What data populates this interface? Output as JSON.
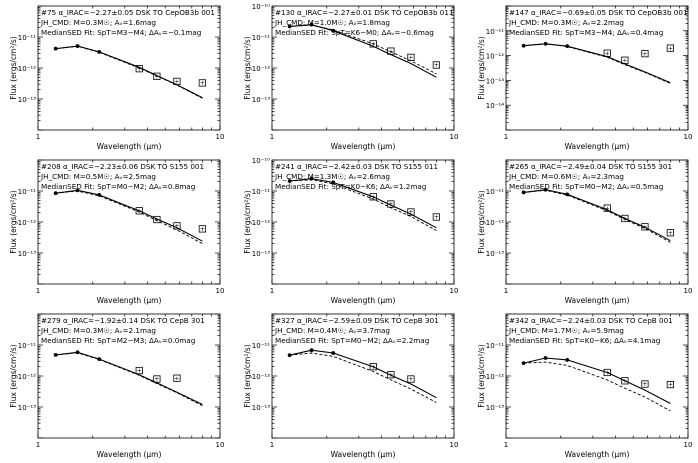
{
  "figure": {
    "xlabel": "Wavelength (μm)",
    "ylabel": "Flux (ergs/cm²/s)"
  },
  "chart_data": [
    {
      "type": "line",
      "title": "#75 α_IRAC=−2.27±0.05 DSK TO CepOB3b 001",
      "annotation_1": "JH_CMD: M=0.3M☉; Aᵥ=1.6mag",
      "annotation_2": "MedianSED Fit: SpT=M3−M4; ΔAᵥ=−0.1mag",
      "xlabel": "Wavelength (μm)",
      "ylabel": "Flux (ergs/cm²/s)",
      "xlim": [
        1,
        10
      ],
      "ylim": [
        1e-14,
        1e-10
      ],
      "xscale": "log",
      "yscale": "log",
      "x_ticks": [
        "1",
        "10"
      ],
      "y_ticks": [
        "10⁻¹¹",
        "10⁻¹²",
        "10⁻¹³"
      ],
      "series": [
        {
          "name": "Photosphere model (solid)",
          "x": [
            1.25,
            1.65,
            2.17,
            3.6,
            4.5,
            5.8,
            8.0
          ],
          "values": [
            4.2e-12,
            5.1e-12,
            3.3e-12,
            1.05e-12,
            5.7e-13,
            2.9e-13,
            1.1e-13
          ]
        },
        {
          "name": "Median SED (dashed)",
          "x": [
            1.25,
            1.65,
            2.17,
            3.6,
            4.5,
            5.8,
            8.0
          ],
          "values": [
            4.2e-12,
            5e-12,
            3.2e-12,
            1e-12,
            5.5e-13,
            2.8e-13,
            1.05e-13
          ]
        },
        {
          "name": "Observed (filled dots)",
          "x": [
            1.25,
            1.65,
            2.17
          ],
          "values": [
            4.2e-12,
            5.1e-12,
            3.3e-12
          ]
        },
        {
          "name": "IRAC (boxed points)",
          "x": [
            3.6,
            4.5,
            5.8,
            8.0
          ],
          "values": [
            9.5e-13,
            5.4e-13,
            3.7e-13,
            3.3e-13
          ]
        }
      ]
    },
    {
      "type": "line",
      "title": "#130 α_IRAC=−2.27±0.01 DSK TO CepOB3b 011",
      "annotation_1": "JH_CMD: M=1.0M☉; Aᵥ=1.8mag",
      "annotation_2": "MedianSED Fit: SpT=K6−M0; ΔAᵥ=−0.6mag",
      "xlabel": "Wavelength (μm)",
      "ylabel": "Flux (ergs/cm²/s)",
      "xlim": [
        1,
        10
      ],
      "ylim": [
        1e-14,
        1e-10
      ],
      "xscale": "log",
      "yscale": "log",
      "x_ticks": [
        "1",
        "10"
      ],
      "y_ticks": [
        "10⁻¹⁰",
        "10⁻¹¹",
        "10⁻¹²",
        "10⁻¹³"
      ],
      "series": [
        {
          "name": "Photosphere model (solid)",
          "x": [
            1.25,
            1.65,
            2.17,
            3.6,
            4.5,
            5.8,
            8.0
          ],
          "values": [
            2.2e-11,
            2.5e-11,
            1.6e-11,
            5e-12,
            2.7e-12,
            1.4e-12,
            5e-13
          ]
        },
        {
          "name": "Median SED (dashed)",
          "x": [
            1.25,
            1.65,
            2.17,
            3.6,
            4.5,
            5.8,
            8.0
          ],
          "values": [
            2.2e-11,
            2.4e-11,
            1.7e-11,
            6e-12,
            3.3e-12,
            1.7e-12,
            6.5e-13
          ]
        },
        {
          "name": "Observed (filled dots)",
          "x": [
            1.25,
            1.65,
            2.17
          ],
          "values": [
            2.2e-11,
            2.5e-11,
            1.6e-11
          ]
        },
        {
          "name": "IRAC (boxed points)",
          "x": [
            3.6,
            4.5,
            5.8,
            8.0
          ],
          "values": [
            6e-12,
            3.5e-12,
            2.2e-12,
            1.25e-12
          ]
        }
      ]
    },
    {
      "type": "line",
      "title": "#147 α_IRAC=−0.69±0.05 DSK TO CepOB3b 001",
      "annotation_1": "JH_CMD: M=0.3M☉; Aᵥ=2.2mag",
      "annotation_2": "MedianSED Fit: SpT=M3−M4; ΔAᵥ=0.4mag",
      "xlabel": "Wavelength (μm)",
      "ylabel": "Flux (ergs/cm²/s)",
      "xlim": [
        1,
        10
      ],
      "ylim": [
        1e-15,
        1e-10
      ],
      "xscale": "log",
      "yscale": "log",
      "x_ticks": [
        "1",
        "10"
      ],
      "y_ticks": [
        "10⁻¹¹",
        "10⁻¹²",
        "10⁻¹³",
        "10⁻¹⁴"
      ],
      "series": [
        {
          "name": "Photosphere model (solid)",
          "x": [
            1.25,
            1.65,
            2.17,
            3.6,
            4.5,
            5.8,
            8.0
          ],
          "values": [
            2.5e-12,
            3e-12,
            2.4e-12,
            9e-13,
            4.6e-13,
            2.2e-13,
            8e-14
          ]
        },
        {
          "name": "Median SED (dashed)",
          "x": [
            1.25,
            1.65,
            2.17,
            3.6,
            4.5,
            5.8,
            8.0
          ],
          "values": [
            2.5e-12,
            3e-12,
            2.3e-12,
            8.6e-13,
            4.3e-13,
            2.1e-13,
            7.6e-14
          ]
        },
        {
          "name": "Observed (filled dots)",
          "x": [
            1.25,
            1.65,
            2.17
          ],
          "values": [
            2.5e-12,
            3e-12,
            2.4e-12
          ]
        },
        {
          "name": "IRAC (boxed points)",
          "x": [
            3.6,
            4.5,
            5.8,
            8.0
          ],
          "values": [
            1.25e-12,
            6.5e-13,
            1.2e-12,
            2e-12
          ]
        }
      ]
    },
    {
      "type": "line",
      "title": "#208 α_IRAC=−2.23±0.06 DSK TO S155 001",
      "annotation_1": "JH_CMD: M=0.5M☉; Aᵥ=2.5mag",
      "annotation_2": "MedianSED Fit: SpT=M0−M2; ΔAᵥ=0.8mag",
      "xlabel": "Wavelength (μm)",
      "ylabel": "Flux (ergs/cm²/s)",
      "xlim": [
        1,
        10
      ],
      "ylim": [
        1e-14,
        1e-10
      ],
      "xscale": "log",
      "yscale": "log",
      "x_ticks": [
        "1",
        "10"
      ],
      "y_ticks": [
        "10⁻¹¹",
        "10⁻¹²",
        "10⁻¹³"
      ],
      "series": [
        {
          "name": "Photosphere model (solid)",
          "x": [
            1.25,
            1.65,
            2.17,
            3.6,
            4.5,
            5.8,
            8.0
          ],
          "values": [
            8.5e-12,
            1.05e-11,
            7.5e-12,
            2.3e-12,
            1.25e-12,
            6.5e-13,
            2.4e-13
          ]
        },
        {
          "name": "Median SED (dashed)",
          "x": [
            1.25,
            1.65,
            2.17,
            3.6,
            4.5,
            5.8,
            8.0
          ],
          "values": [
            8.5e-12,
            1e-11,
            7e-12,
            2.1e-12,
            1.1e-12,
            5.6e-13,
            2e-13
          ]
        },
        {
          "name": "Observed (filled dots)",
          "x": [
            1.25,
            1.65,
            2.17
          ],
          "values": [
            8.5e-12,
            1.05e-11,
            7.5e-12
          ]
        },
        {
          "name": "IRAC (boxed points)",
          "x": [
            3.6,
            4.5,
            5.8,
            8.0
          ],
          "values": [
            2.3e-12,
            1.2e-12,
            7.5e-13,
            6e-13
          ]
        }
      ]
    },
    {
      "type": "line",
      "title": "#241 α_IRAC=−2.42±0.03 DSK TO S155 011",
      "annotation_1": "JH_CMD: M=1.3M☉; Aᵥ=2.6mag",
      "annotation_2": "MedianSED Fit: SpT=K0−K6; ΔAᵥ=1.2mag",
      "xlabel": "Wavelength (μm)",
      "ylabel": "Flux (ergs/cm²/s)",
      "xlim": [
        1,
        10
      ],
      "ylim": [
        1e-14,
        1e-10
      ],
      "xscale": "log",
      "yscale": "log",
      "x_ticks": [
        "1",
        "10"
      ],
      "y_ticks": [
        "10⁻¹⁰",
        "10⁻¹¹",
        "10⁻¹²",
        "10⁻¹³"
      ],
      "series": [
        {
          "name": "Photosphere model (solid)",
          "x": [
            1.25,
            1.65,
            2.17,
            3.6,
            4.5,
            5.8,
            8.0
          ],
          "values": [
            2.1e-11,
            2.5e-11,
            1.9e-11,
            6.5e-12,
            3.5e-12,
            1.8e-12,
            6.5e-13
          ]
        },
        {
          "name": "Median SED (dashed)",
          "x": [
            1.25,
            1.65,
            2.17,
            3.6,
            4.5,
            5.8,
            8.0
          ],
          "values": [
            2.1e-11,
            2.3e-11,
            1.7e-11,
            5.5e-12,
            2.9e-12,
            1.5e-12,
            5.3e-13
          ]
        },
        {
          "name": "Observed (filled dots)",
          "x": [
            1.25,
            1.65,
            2.17
          ],
          "values": [
            2.1e-11,
            2.5e-11,
            1.9e-11
          ]
        },
        {
          "name": "IRAC (boxed points)",
          "x": [
            3.6,
            4.5,
            5.8,
            8.0
          ],
          "values": [
            6.5e-12,
            3.8e-12,
            2.1e-12,
            1.45e-12
          ]
        }
      ]
    },
    {
      "type": "line",
      "title": "#265 α_IRAC=−2.49±0.04 DSK TO S155 301",
      "annotation_1": "JH_CMD: M=0.6M☉; Aᵥ=2.3mag",
      "annotation_2": "MedianSED Fit: SpT=M0−M2; ΔAᵥ=0.5mag",
      "xlabel": "Wavelength (μm)",
      "ylabel": "Flux (ergs/cm²/s)",
      "xlim": [
        1,
        10
      ],
      "ylim": [
        1e-14,
        1e-10
      ],
      "xscale": "log",
      "yscale": "log",
      "x_ticks": [
        "1",
        "10"
      ],
      "y_ticks": [
        "10⁻¹¹",
        "10⁻¹²",
        "10⁻¹³"
      ],
      "series": [
        {
          "name": "Photosphere model (solid)",
          "x": [
            1.25,
            1.65,
            2.17,
            3.6,
            4.5,
            5.8,
            8.0
          ],
          "values": [
            9e-12,
            1.1e-11,
            7.8e-12,
            2.5e-12,
            1.3e-12,
            6.8e-13,
            2.5e-13
          ]
        },
        {
          "name": "Median SED (dashed)",
          "x": [
            1.25,
            1.65,
            2.17,
            3.6,
            4.5,
            5.8,
            8.0
          ],
          "values": [
            9e-12,
            1.05e-11,
            7.4e-12,
            2.3e-12,
            1.2e-12,
            6.2e-13,
            2.2e-13
          ]
        },
        {
          "name": "Observed (filled dots)",
          "x": [
            1.25,
            1.65,
            2.17
          ],
          "values": [
            9e-12,
            1.1e-11,
            7.8e-12
          ]
        },
        {
          "name": "IRAC (boxed points)",
          "x": [
            3.6,
            4.5,
            5.8,
            8.0
          ],
          "values": [
            2.8e-12,
            1.3e-12,
            7e-13,
            4.5e-13
          ]
        }
      ]
    },
    {
      "type": "line",
      "title": "#279 α_IRAC=−1.92±0.14 DSK TO CepB 301",
      "annotation_1": "JH_CMD: M=0.3M☉; Aᵥ=2.1mag",
      "annotation_2": "MedianSED Fit: SpT=M2−M3; ΔAᵥ=0.0mag",
      "xlabel": "Wavelength (μm)",
      "ylabel": "Flux (ergs/cm²/s)",
      "xlim": [
        1,
        10
      ],
      "ylim": [
        1e-14,
        1e-10
      ],
      "xscale": "log",
      "yscale": "log",
      "x_ticks": [
        "1",
        "10"
      ],
      "y_ticks": [
        "10⁻¹¹",
        "10⁻¹²",
        "10⁻¹³"
      ],
      "series": [
        {
          "name": "Photosphere model (solid)",
          "x": [
            1.25,
            1.65,
            2.17,
            3.6,
            4.5,
            5.8,
            8.0
          ],
          "values": [
            4.8e-12,
            5.8e-12,
            3.5e-12,
            1.1e-12,
            6e-13,
            3e-13,
            1.2e-13
          ]
        },
        {
          "name": "Median SED (dashed)",
          "x": [
            1.25,
            1.65,
            2.17,
            3.6,
            4.5,
            5.8,
            8.0
          ],
          "values": [
            4.8e-12,
            5.6e-12,
            3.4e-12,
            1.05e-12,
            5.7e-13,
            2.9e-13,
            1.1e-13
          ]
        },
        {
          "name": "Observed (filled dots)",
          "x": [
            1.25,
            1.65,
            2.17
          ],
          "values": [
            4.8e-12,
            5.8e-12,
            3.5e-12
          ]
        },
        {
          "name": "IRAC (boxed points)",
          "x": [
            3.6,
            4.5,
            5.8
          ],
          "values": [
            1.5e-12,
            8e-13,
            8.5e-13
          ]
        }
      ]
    },
    {
      "type": "line",
      "title": "#327 α_IRAC=−2.59±0.09 DSK TO CepB 301",
      "annotation_1": "JH_CMD: M=0.4M☉; Aᵥ=3.7mag",
      "annotation_2": "MedianSED Fit: SpT=M0−M2; ΔAᵥ=2.2mag",
      "xlabel": "Wavelength (μm)",
      "ylabel": "Flux (ergs/cm²/s)",
      "xlim": [
        1,
        10
      ],
      "ylim": [
        1e-14,
        1e-10
      ],
      "xscale": "log",
      "yscale": "log",
      "x_ticks": [
        "1",
        "10"
      ],
      "y_ticks": [
        "10⁻¹¹",
        "10⁻¹²",
        "10⁻¹³"
      ],
      "series": [
        {
          "name": "Photosphere model (solid)",
          "x": [
            1.25,
            1.65,
            2.17,
            3.6,
            4.5,
            5.8,
            8.0
          ],
          "values": [
            4.7e-12,
            6.8e-12,
            5.5e-12,
            2e-12,
            1.05e-12,
            5.5e-13,
            2e-13
          ]
        },
        {
          "name": "Median SED (dashed)",
          "x": [
            1.25,
            1.65,
            2.17,
            3.6,
            4.5,
            5.8,
            8.0
          ],
          "values": [
            4.7e-12,
            5.5e-12,
            4.3e-12,
            1.4e-12,
            7.5e-13,
            3.8e-13,
            1.4e-13
          ]
        },
        {
          "name": "Observed (filled dots)",
          "x": [
            1.25,
            1.65,
            2.17
          ],
          "values": [
            4.7e-12,
            6.8e-12,
            5.5e-12
          ]
        },
        {
          "name": "IRAC (boxed points)",
          "x": [
            3.6,
            4.5,
            5.8
          ],
          "values": [
            2e-12,
            1.1e-12,
            8e-13
          ]
        }
      ]
    },
    {
      "type": "line",
      "title": "#342 α_IRAC=−2.24±0.03 DSK TO CepB 001",
      "annotation_1": "JH_CMD: M=1.7M☉; Aᵥ=5.9mag",
      "annotation_2": "MedianSED Fit: SpT=K0−K6; ΔAᵥ=4.1mag",
      "xlabel": "Wavelength (μm)",
      "ylabel": "Flux (ergs/cm²/s)",
      "xlim": [
        1,
        10
      ],
      "ylim": [
        1e-14,
        1e-10
      ],
      "xscale": "log",
      "yscale": "log",
      "x_ticks": [
        "1",
        "10"
      ],
      "y_ticks": [
        "10⁻¹¹",
        "10⁻¹²",
        "10⁻¹³"
      ],
      "series": [
        {
          "name": "Photosphere model (solid)",
          "x": [
            1.25,
            1.65,
            2.17,
            3.6,
            4.5,
            5.8,
            8.0
          ],
          "values": [
            2.6e-12,
            3.8e-12,
            3.3e-12,
            1.3e-12,
            7e-13,
            3.5e-13,
            1.3e-13
          ]
        },
        {
          "name": "Median SED (dashed)",
          "x": [
            1.25,
            1.65,
            2.17,
            3.6,
            4.5,
            5.8,
            8.0
          ],
          "values": [
            2.6e-12,
            2.8e-12,
            2.2e-12,
            7.5e-13,
            4e-13,
            2.1e-13,
            7.5e-14
          ]
        },
        {
          "name": "Observed (filled dots)",
          "x": [
            1.25,
            1.65,
            2.17
          ],
          "values": [
            2.6e-12,
            3.8e-12,
            3.3e-12
          ]
        },
        {
          "name": "IRAC (boxed points)",
          "x": [
            3.6,
            4.5,
            5.8,
            8.0
          ],
          "values": [
            1.3e-12,
            7e-13,
            5.5e-13,
            5.3e-13
          ]
        }
      ]
    }
  ]
}
